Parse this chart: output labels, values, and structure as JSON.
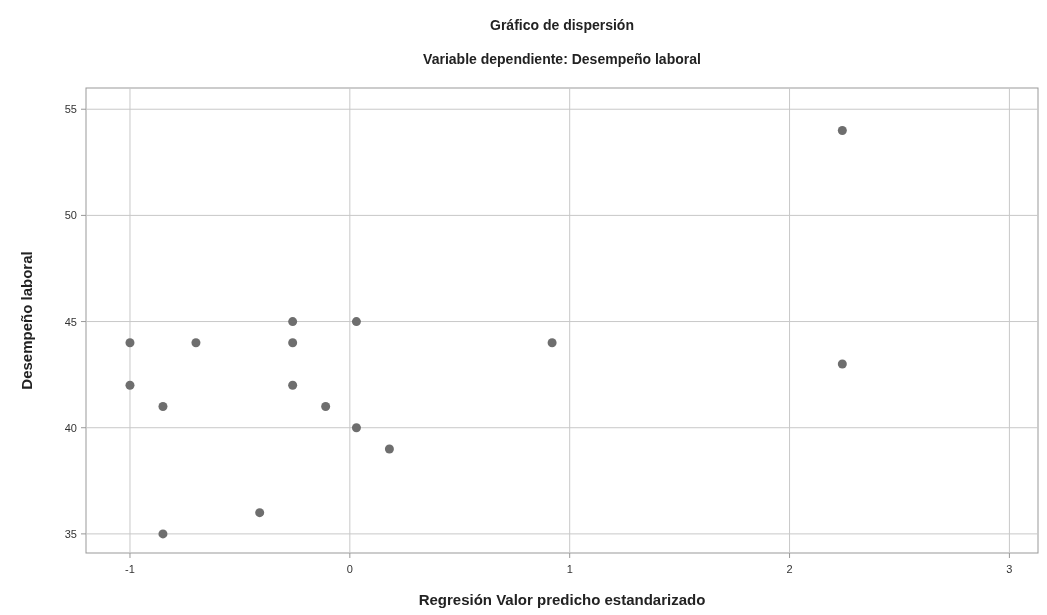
{
  "chart_data": {
    "type": "scatter",
    "title": "Gráfico de dispersión",
    "subtitle": "Variable dependiente: Desempeño laboral",
    "xlabel": "Regresión Valor predicho estandarizado",
    "ylabel": "Desempeño laboral",
    "x": [
      -1.0,
      -1.0,
      -0.85,
      -0.85,
      -0.7,
      -0.41,
      -0.26,
      -0.26,
      -0.26,
      -0.11,
      0.03,
      0.03,
      0.18,
      0.92,
      2.24,
      2.24
    ],
    "series": [
      {
        "color": "#6e6e6e",
        "values": [
          44,
          42,
          41,
          35,
          44,
          36,
          45,
          44,
          42,
          41,
          45,
          40,
          39,
          44,
          54,
          43
        ]
      }
    ],
    "xlim": [
      -1.2,
      3.13
    ],
    "xticks": [
      -1,
      0,
      1,
      2,
      3
    ],
    "ylim": [
      34.1,
      56
    ],
    "yticks": [
      35,
      40,
      45,
      50,
      55
    ],
    "grid": true,
    "marker": "circle"
  }
}
